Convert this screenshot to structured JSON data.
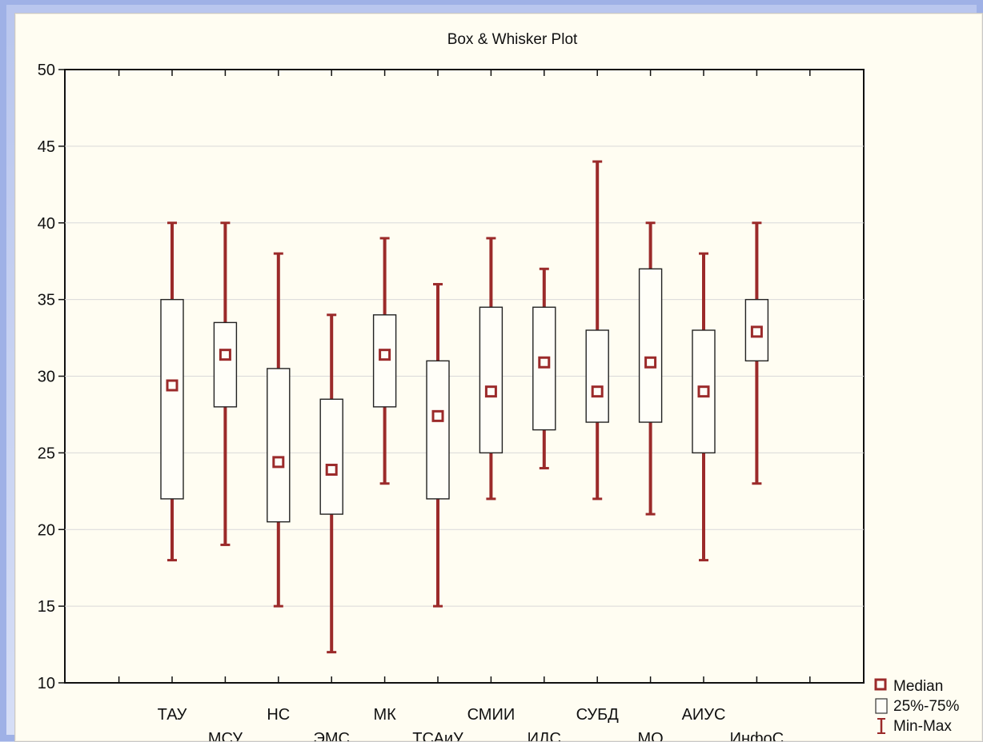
{
  "chart_data": {
    "type": "box",
    "title": "Box & Whisker Plot",
    "categories": [
      "ТАУ",
      "МСУ",
      "НС",
      "ЭМС",
      "МК",
      "ТСАиУ",
      "СМИИ",
      "ИДС",
      "СУБД",
      "МО",
      "АИУС",
      "ИнфоС"
    ],
    "series": [
      {
        "category": "ТАУ",
        "min": 18,
        "q1": 22,
        "median": 29.4,
        "q3": 35,
        "max": 40
      },
      {
        "category": "МСУ",
        "min": 19,
        "q1": 28,
        "median": 31.4,
        "q3": 33.5,
        "max": 40
      },
      {
        "category": "НС",
        "min": 15,
        "q1": 20.5,
        "median": 24.4,
        "q3": 30.5,
        "max": 38
      },
      {
        "category": "ЭМС",
        "min": 12,
        "q1": 21,
        "median": 23.9,
        "q3": 28.5,
        "max": 34
      },
      {
        "category": "МК",
        "min": 23,
        "q1": 28,
        "median": 31.4,
        "q3": 34,
        "max": 39
      },
      {
        "category": "ТСАиУ",
        "min": 15,
        "q1": 22,
        "median": 27.4,
        "q3": 31,
        "max": 36
      },
      {
        "category": "СМИИ",
        "min": 22,
        "q1": 25,
        "median": 29,
        "q3": 34.5,
        "max": 39
      },
      {
        "category": "ИДС",
        "min": 24,
        "q1": 26.5,
        "median": 30.9,
        "q3": 34.5,
        "max": 37
      },
      {
        "category": "СУБД",
        "min": 22,
        "q1": 27,
        "median": 29,
        "q3": 33,
        "max": 44
      },
      {
        "category": "МО",
        "min": 21,
        "q1": 27,
        "median": 30.9,
        "q3": 37,
        "max": 40
      },
      {
        "category": "АИУС",
        "min": 18,
        "q1": 25,
        "median": 29,
        "q3": 33,
        "max": 38
      },
      {
        "category": "ИнфоС",
        "min": 23,
        "q1": 31,
        "median": 32.9,
        "q3": 35,
        "max": 40
      }
    ],
    "ylim": [
      10,
      50
    ],
    "yticks": [
      10,
      15,
      20,
      25,
      30,
      35,
      40,
      45,
      50
    ],
    "grid": true,
    "legend": {
      "placement": "bottom-right",
      "items": [
        {
          "label": "Median",
          "symbol": "square-marker"
        },
        {
          "label": "25%-75%",
          "symbol": "box"
        },
        {
          "label": "Min-Max",
          "symbol": "whisker"
        }
      ]
    },
    "colors": {
      "whisker": "#9b2a2a",
      "median": "#9b2a2a",
      "box_stroke": "#222222",
      "grid": "#d9d9d9"
    }
  }
}
